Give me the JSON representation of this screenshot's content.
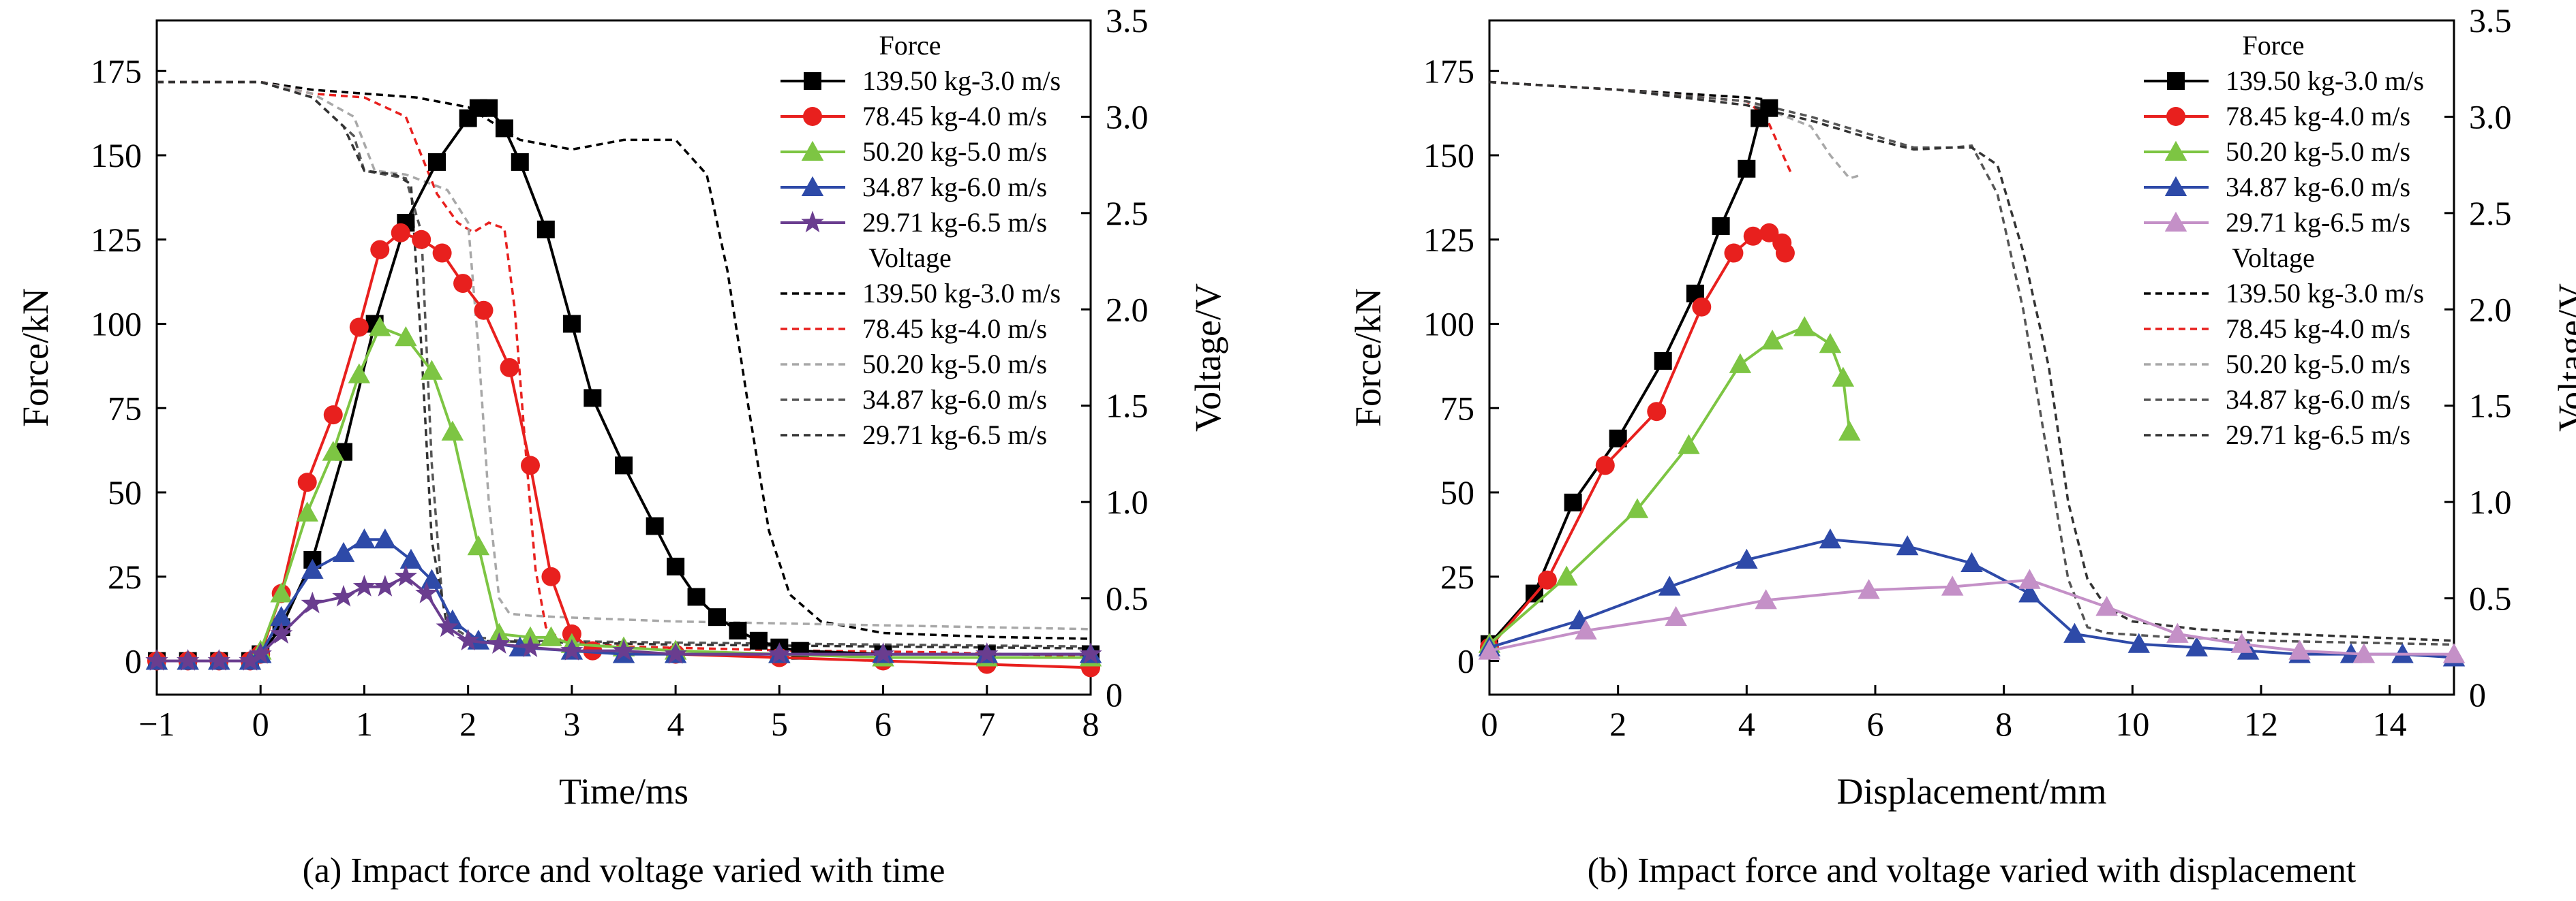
{
  "chart_data": [
    {
      "type": "line",
      "caption": "(a) Impact force and voltage varied with time",
      "xlabel": "Time/ms",
      "ylabel": "Force/kN",
      "y2label": "Voltage/V",
      "xlim": [
        -1,
        8
      ],
      "ylim": [
        -10,
        190
      ],
      "y2lim": [
        0,
        3.5
      ],
      "xticks": [
        "−1",
        "0",
        "1",
        "2",
        "3",
        "4",
        "5",
        "6",
        "7",
        "8"
      ],
      "yticks": [
        "0",
        "25",
        "50",
        "75",
        "100",
        "125",
        "150",
        "175"
      ],
      "y2ticks": [
        "0",
        "0.5",
        "1.0",
        "1.5",
        "2.0",
        "2.5",
        "3.0",
        "3.5"
      ],
      "legend": {
        "position": "top-right",
        "force_title": "Force",
        "voltage_title": "Voltage",
        "force_labels": [
          "139.50 kg-3.0 m/s",
          "78.45 kg-4.0 m/s",
          "50.20 kg-5.0 m/s",
          "34.87 kg-6.0 m/s",
          "29.71 kg-6.5 m/s"
        ],
        "voltage_labels": [
          "139.50 kg-3.0 m/s",
          "78.45 kg-4.0 m/s",
          "50.20 kg-5.0 m/s",
          "34.87 kg-6.0 m/s",
          "29.71 kg-6.5 m/s"
        ]
      },
      "force_series": [
        {
          "name": "139.50 kg-3.0 m/s",
          "color": "#000000",
          "marker": "square",
          "x": [
            -1,
            -0.7,
            -0.4,
            -0.1,
            0,
            0.2,
            0.5,
            0.8,
            1.1,
            1.4,
            1.7,
            2.0,
            2.1,
            2.2,
            2.35,
            2.5,
            2.75,
            3.0,
            3.2,
            3.5,
            3.8,
            4.0,
            4.2,
            4.4,
            4.6,
            4.8,
            5.0,
            5.2,
            6.0,
            7.0,
            8.0
          ],
          "y": [
            0,
            0,
            0,
            0,
            2,
            10,
            30,
            62,
            100,
            130,
            148,
            161,
            164,
            164,
            158,
            148,
            128,
            100,
            78,
            58,
            40,
            28,
            19,
            13,
            9,
            6,
            4,
            3,
            2,
            2,
            2
          ]
        },
        {
          "name": "78.45 kg-4.0 m/s",
          "color": "#e8201e",
          "marker": "circle",
          "x": [
            -1,
            -0.7,
            -0.4,
            -0.1,
            0,
            0.2,
            0.45,
            0.7,
            0.95,
            1.15,
            1.35,
            1.55,
            1.75,
            1.95,
            2.15,
            2.4,
            2.6,
            2.8,
            3.0,
            3.2,
            4.0,
            5.0,
            6.0,
            7.0,
            8.0
          ],
          "y": [
            0,
            0,
            0,
            0,
            2,
            20,
            53,
            73,
            99,
            122,
            127,
            125,
            121,
            112,
            104,
            87,
            58,
            25,
            8,
            3,
            2,
            1,
            0,
            -1,
            -2
          ]
        },
        {
          "name": "50.20 kg-5.0 m/s",
          "color": "#7dc543",
          "marker": "triangle",
          "x": [
            -1,
            -0.7,
            -0.4,
            -0.1,
            0,
            0.2,
            0.45,
            0.7,
            0.95,
            1.15,
            1.4,
            1.65,
            1.85,
            2.1,
            2.3,
            2.6,
            2.8,
            3.0,
            3.5,
            4.0,
            5.0,
            6.0,
            7.0,
            8.0
          ],
          "y": [
            0,
            0,
            0,
            0,
            3,
            20,
            44,
            62,
            85,
            99,
            96,
            86,
            68,
            34,
            8,
            7,
            7,
            5,
            4,
            3,
            2,
            1,
            1,
            1
          ]
        },
        {
          "name": "34.87 kg-6.0 m/s",
          "color": "#2e4aa8",
          "marker": "triangle",
          "x": [
            -1,
            -0.7,
            -0.4,
            -0.1,
            0,
            0.2,
            0.5,
            0.8,
            1.0,
            1.2,
            1.45,
            1.65,
            1.85,
            2.1,
            2.5,
            3.0,
            3.5,
            4.0,
            5.0,
            6.0,
            7.0,
            8.0
          ],
          "y": [
            0,
            0,
            0,
            0,
            2,
            13,
            27,
            32,
            36,
            36,
            30,
            24,
            12,
            6,
            4,
            3,
            2,
            2,
            2,
            2,
            2,
            2
          ]
        },
        {
          "name": "29.71 kg-6.5 m/s",
          "color": "#6a3d8f",
          "marker": "star",
          "x": [
            -1,
            -0.7,
            -0.4,
            -0.1,
            0,
            0.2,
            0.5,
            0.8,
            1.0,
            1.2,
            1.4,
            1.6,
            1.8,
            2.0,
            2.3,
            2.6,
            3.0,
            3.5,
            4.0,
            5.0,
            6.0,
            7.0,
            8.0
          ],
          "y": [
            0,
            0,
            0,
            0,
            2,
            8,
            17,
            19,
            22,
            22,
            25,
            20,
            10,
            6,
            5,
            4,
            3,
            3,
            2,
            2,
            2,
            2,
            2
          ]
        }
      ],
      "voltage_series": [
        {
          "name": "139.50 kg-3.0 m/s",
          "color": "#000000",
          "x": [
            -1,
            0,
            0.5,
            1.0,
            1.5,
            2.0,
            2.5,
            3.0,
            3.5,
            4.0,
            4.3,
            4.5,
            4.7,
            4.9,
            5.1,
            5.4,
            6.0,
            7.0,
            8.0
          ],
          "y": [
            3.18,
            3.18,
            3.14,
            3.12,
            3.1,
            3.05,
            2.88,
            2.83,
            2.88,
            2.88,
            2.7,
            2.2,
            1.5,
            0.85,
            0.52,
            0.38,
            0.32,
            0.3,
            0.29
          ]
        },
        {
          "name": "78.45 kg-4.0 m/s",
          "color": "#e8201e",
          "x": [
            -1,
            0,
            0.5,
            1.0,
            1.4,
            1.7,
            1.9,
            2.05,
            2.2,
            2.35,
            2.45,
            2.55,
            2.65,
            2.75,
            2.9,
            3.5,
            5.0,
            6.5,
            8.0
          ],
          "y": [
            3.18,
            3.18,
            3.12,
            3.1,
            3.0,
            2.6,
            2.45,
            2.4,
            2.45,
            2.42,
            2.0,
            1.3,
            0.65,
            0.35,
            0.28,
            0.25,
            0.23,
            0.22,
            0.2
          ]
        },
        {
          "name": "50.20 kg-5.0 m/s",
          "color": "#a8a8a8",
          "x": [
            -1,
            0,
            0.5,
            0.9,
            1.1,
            1.4,
            1.8,
            2.0,
            2.1,
            2.2,
            2.3,
            2.4,
            2.6,
            3.0,
            4.0,
            6.0,
            8.0
          ],
          "y": [
            3.18,
            3.18,
            3.12,
            3.0,
            2.72,
            2.7,
            2.62,
            2.45,
            1.8,
            1.0,
            0.5,
            0.42,
            0.41,
            0.4,
            0.38,
            0.36,
            0.34
          ]
        },
        {
          "name": "34.87 kg-6.0 m/s",
          "color": "#555555",
          "x": [
            -1,
            0,
            0.5,
            0.9,
            1.0,
            1.2,
            1.4,
            1.55,
            1.65,
            1.75,
            1.85,
            2.0,
            2.5,
            4.0,
            6.0,
            8.0
          ],
          "y": [
            3.18,
            3.18,
            3.1,
            2.9,
            2.72,
            2.7,
            2.68,
            2.4,
            1.2,
            0.5,
            0.35,
            0.3,
            0.28,
            0.27,
            0.26,
            0.25
          ]
        },
        {
          "name": "29.71 kg-6.5 m/s",
          "color": "#333333",
          "x": [
            -1,
            0,
            0.5,
            0.8,
            1.0,
            1.3,
            1.45,
            1.55,
            1.65,
            1.8,
            2.0,
            4.0,
            6.0,
            8.0
          ],
          "y": [
            3.18,
            3.18,
            3.1,
            2.95,
            2.72,
            2.7,
            2.65,
            1.8,
            0.8,
            0.35,
            0.28,
            0.26,
            0.25,
            0.24
          ]
        }
      ]
    },
    {
      "type": "line",
      "caption": "(b) Impact force and voltage varied with displacement",
      "xlabel": "Displacement/mm",
      "ylabel": "Force/kN",
      "y2label": "Voltage/V",
      "xlim": [
        0,
        15
      ],
      "ylim": [
        -10,
        190
      ],
      "y2lim": [
        0,
        3.5
      ],
      "xticks": [
        "0",
        "2",
        "4",
        "6",
        "8",
        "10",
        "12",
        "14"
      ],
      "yticks": [
        "0",
        "25",
        "50",
        "75",
        "100",
        "125",
        "150",
        "175"
      ],
      "y2ticks": [
        "0",
        "0.5",
        "1.0",
        "1.5",
        "2.0",
        "2.5",
        "3.0",
        "3.5"
      ],
      "legend": {
        "position": "top-right",
        "force_title": "Force",
        "voltage_title": "Voltage",
        "force_labels": [
          "139.50 kg-3.0 m/s",
          "78.45 kg-4.0 m/s",
          "50.20 kg-5.0 m/s",
          "34.87 kg-6.0 m/s",
          "29.71 kg-6.5 m/s"
        ],
        "voltage_labels": [
          "139.50 kg-3.0 m/s",
          "78.45 kg-4.0 m/s",
          "50.20 kg-5.0 m/s",
          "34.87 kg-6.0 m/s",
          "29.71 kg-6.5 m/s"
        ]
      },
      "force_series": [
        {
          "name": "139.50 kg-3.0 m/s",
          "color": "#000000",
          "marker": "square",
          "x": [
            0,
            0.7,
            1.3,
            2.0,
            2.7,
            3.2,
            3.6,
            4.0,
            4.2,
            4.35
          ],
          "y": [
            5,
            20,
            47,
            66,
            89,
            109,
            129,
            146,
            161,
            164
          ]
        },
        {
          "name": "78.45 kg-4.0 m/s",
          "color": "#e8201e",
          "marker": "circle",
          "x": [
            0,
            0.9,
            1.8,
            2.6,
            3.3,
            3.8,
            4.1,
            4.35,
            4.55,
            4.6
          ],
          "y": [
            4,
            24,
            58,
            74,
            105,
            121,
            126,
            127,
            124,
            121
          ]
        },
        {
          "name": "50.20 kg-5.0 m/s",
          "color": "#7dc543",
          "marker": "triangle",
          "x": [
            0,
            1.2,
            2.3,
            3.1,
            3.9,
            4.4,
            4.9,
            5.3,
            5.5,
            5.6
          ],
          "y": [
            5,
            25,
            45,
            64,
            88,
            95,
            99,
            94,
            84,
            68
          ]
        },
        {
          "name": "34.87 kg-6.0 m/s",
          "color": "#2e4aa8",
          "marker": "triangle",
          "x": [
            0,
            1.4,
            2.8,
            4.0,
            5.3,
            6.5,
            7.5,
            8.4,
            9.1,
            10.1,
            11.0,
            11.8,
            12.6,
            13.4,
            14.2,
            15.0
          ],
          "y": [
            4,
            12,
            22,
            30,
            36,
            34,
            29,
            20,
            8,
            5,
            4,
            3,
            2,
            2,
            2,
            1
          ]
        },
        {
          "name": "29.71 kg-6.5 m/s",
          "color": "#c490c7",
          "marker": "triangle",
          "x": [
            0,
            1.5,
            2.9,
            4.3,
            5.9,
            7.2,
            8.4,
            9.6,
            10.7,
            11.7,
            12.6,
            13.6,
            15.0
          ],
          "y": [
            3,
            9,
            13,
            18,
            21,
            22,
            24,
            16,
            8,
            5,
            3,
            2,
            2
          ]
        }
      ],
      "voltage_series": [
        {
          "name": "139.50 kg-3.0 m/s",
          "color": "#000000",
          "x": [
            0,
            2.0,
            4.0,
            4.3
          ],
          "y": [
            3.18,
            3.14,
            3.1,
            3.09
          ]
        },
        {
          "name": "78.45 kg-4.0 m/s",
          "color": "#e8201e",
          "x": [
            0,
            2.0,
            4.0,
            4.3,
            4.5,
            4.7
          ],
          "y": [
            3.18,
            3.14,
            3.08,
            3.0,
            2.85,
            2.7
          ]
        },
        {
          "name": "50.20 kg-5.0 m/s",
          "color": "#a8a8a8",
          "x": [
            0,
            2.0,
            4.0,
            5.0,
            5.3,
            5.6,
            5.8
          ],
          "y": [
            3.18,
            3.14,
            3.08,
            2.95,
            2.8,
            2.68,
            2.7
          ]
        },
        {
          "name": "34.87 kg-6.0 m/s",
          "color": "#555555",
          "x": [
            0,
            2.0,
            4.0,
            5.0,
            6.0,
            6.6,
            7.2,
            7.5,
            7.9,
            8.3,
            8.7,
            9.0,
            9.3,
            9.6,
            10.5,
            12.0,
            13.5,
            15.0
          ],
          "y": [
            3.18,
            3.14,
            3.08,
            3.0,
            2.9,
            2.84,
            2.84,
            2.85,
            2.6,
            2.0,
            1.2,
            0.6,
            0.35,
            0.32,
            0.3,
            0.28,
            0.27,
            0.26
          ]
        },
        {
          "name": "29.71 kg-6.5 m/s",
          "color": "#333333",
          "x": [
            0,
            2.0,
            4.0,
            5.0,
            6.0,
            6.6,
            7.2,
            7.5,
            7.9,
            8.3,
            8.7,
            9.0,
            9.3,
            9.6,
            10.0,
            11.0,
            12.0,
            13.5,
            15.0
          ],
          "y": [
            3.18,
            3.14,
            3.06,
            2.98,
            2.88,
            2.83,
            2.84,
            2.84,
            2.75,
            2.3,
            1.7,
            1.0,
            0.6,
            0.45,
            0.38,
            0.34,
            0.32,
            0.3,
            0.28
          ]
        }
      ]
    }
  ]
}
